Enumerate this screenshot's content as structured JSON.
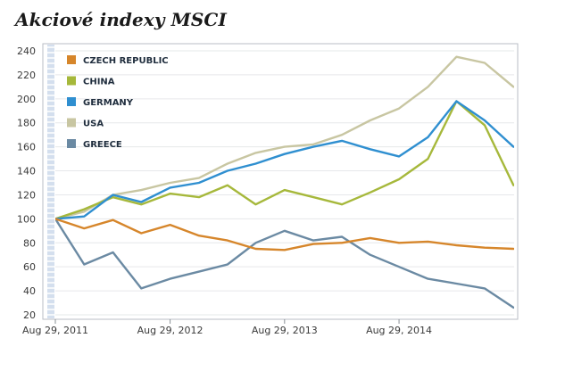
{
  "title": "Akciové indexy MSCI",
  "chart_data": {
    "type": "line",
    "title": "Akciové indexy MSCI",
    "xlabel": "",
    "ylabel": "",
    "x_ticks": [
      "Aug 29, 2011",
      "Aug 29, 2012",
      "Aug 29, 2013",
      "Aug 29, 2014"
    ],
    "x": [
      "2011-08-29",
      "2011-11-29",
      "2012-02-29",
      "2012-05-29",
      "2012-08-29",
      "2012-11-29",
      "2013-02-28",
      "2013-05-29",
      "2013-08-29",
      "2013-11-29",
      "2014-02-28",
      "2014-05-29",
      "2014-08-29",
      "2014-11-29",
      "2015-02-28",
      "2015-05-29",
      "2015-08-29"
    ],
    "xlim": [
      "2011-08-29",
      "2015-08-31"
    ],
    "ylim": [
      20,
      240
    ],
    "y_ticks": [
      20,
      40,
      60,
      80,
      100,
      120,
      140,
      160,
      180,
      200,
      220,
      240
    ],
    "grid": true,
    "legend": "top-left",
    "series": [
      {
        "name": "CZECH REPUBLIC",
        "color": "#d6862b",
        "values": [
          100,
          92,
          99,
          88,
          95,
          86,
          82,
          75,
          74,
          79,
          80,
          84,
          80,
          81,
          78,
          76,
          75
        ]
      },
      {
        "name": "CHINA",
        "color": "#a6b83b",
        "values": [
          100,
          108,
          118,
          112,
          121,
          118,
          128,
          112,
          124,
          118,
          112,
          122,
          133,
          150,
          198,
          178,
          128
        ]
      },
      {
        "name": "GERMANY",
        "color": "#2f8fd0",
        "values": [
          100,
          102,
          120,
          114,
          126,
          130,
          140,
          146,
          154,
          160,
          165,
          158,
          152,
          168,
          198,
          182,
          160
        ]
      },
      {
        "name": "USA",
        "color": "#c8c6a2",
        "values": [
          100,
          106,
          120,
          124,
          130,
          134,
          146,
          155,
          160,
          162,
          170,
          182,
          192,
          210,
          235,
          230,
          210
        ]
      },
      {
        "name": "GREECE",
        "color": "#6b8aa3",
        "values": [
          100,
          62,
          72,
          42,
          50,
          56,
          62,
          80,
          90,
          82,
          85,
          70,
          60,
          50,
          46,
          42,
          26
        ]
      }
    ]
  }
}
